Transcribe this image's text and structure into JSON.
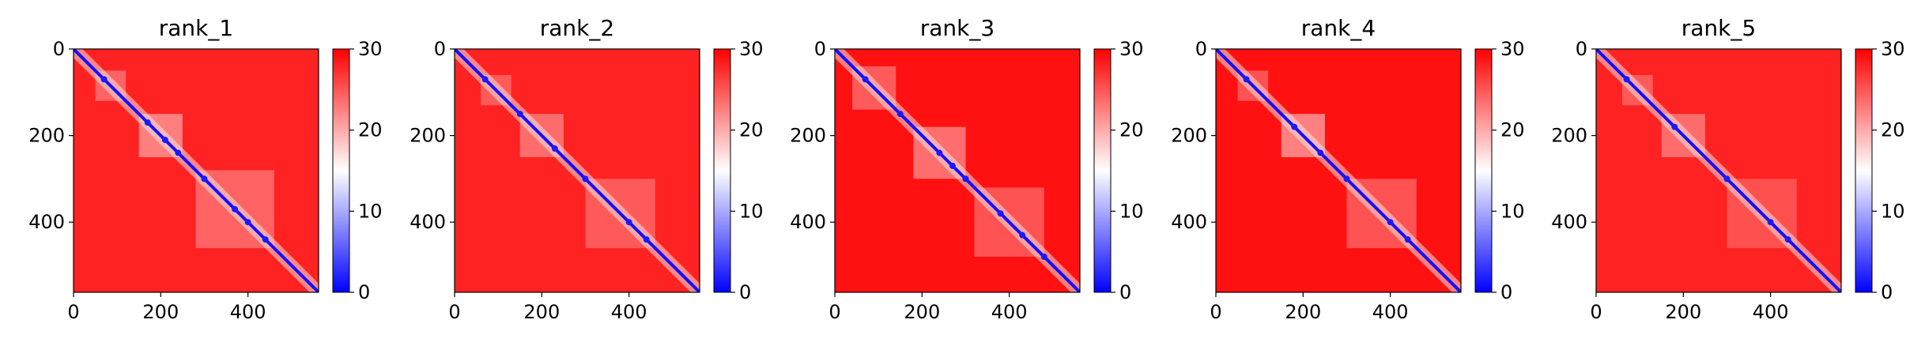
{
  "chart_data": [
    {
      "type": "heatmap",
      "title": "rank_1",
      "xlim": [
        0,
        562
      ],
      "ylim": [
        562,
        0
      ],
      "xticks": [
        0,
        200,
        400
      ],
      "yticks": [
        0,
        200,
        400
      ],
      "colorbar": {
        "min": 0,
        "max": 30,
        "ticks": [
          0,
          10,
          20,
          30
        ],
        "colormap": "bwr"
      },
      "background_value": 28,
      "diagonal_value": 1,
      "blocks": [
        {
          "start": 150,
          "end": 250,
          "value": 18
        },
        {
          "start": 50,
          "end": 120,
          "value": 21
        },
        {
          "start": 280,
          "end": 460,
          "value": 21
        }
      ],
      "nodes": [
        70,
        170,
        210,
        240,
        300,
        370,
        400,
        440
      ]
    },
    {
      "type": "heatmap",
      "title": "rank_2",
      "xlim": [
        0,
        562
      ],
      "ylim": [
        562,
        0
      ],
      "xticks": [
        0,
        200,
        400
      ],
      "yticks": [
        0,
        200,
        400
      ],
      "colorbar": {
        "min": 0,
        "max": 30,
        "ticks": [
          0,
          10,
          20,
          30
        ],
        "colormap": "bwr"
      },
      "background_value": 28,
      "diagonal_value": 1,
      "blocks": [
        {
          "start": 150,
          "end": 250,
          "value": 20
        },
        {
          "start": 60,
          "end": 130,
          "value": 22
        },
        {
          "start": 300,
          "end": 460,
          "value": 22
        }
      ],
      "nodes": [
        70,
        150,
        230,
        300,
        400,
        440
      ]
    },
    {
      "type": "heatmap",
      "title": "rank_3",
      "xlim": [
        0,
        562
      ],
      "ylim": [
        562,
        0
      ],
      "xticks": [
        0,
        200,
        400
      ],
      "yticks": [
        0,
        200,
        400
      ],
      "colorbar": {
        "min": 0,
        "max": 30,
        "ticks": [
          0,
          10,
          20,
          30
        ],
        "colormap": "bwr"
      },
      "background_value": 29,
      "diagonal_value": 1,
      "blocks": [
        {
          "start": 180,
          "end": 300,
          "value": 19
        },
        {
          "start": 40,
          "end": 140,
          "value": 21
        },
        {
          "start": 320,
          "end": 480,
          "value": 22
        }
      ],
      "nodes": [
        70,
        150,
        240,
        270,
        300,
        380,
        430,
        480
      ]
    },
    {
      "type": "heatmap",
      "title": "rank_4",
      "xlim": [
        0,
        562
      ],
      "ylim": [
        562,
        0
      ],
      "xticks": [
        0,
        200,
        400
      ],
      "yticks": [
        0,
        200,
        400
      ],
      "colorbar": {
        "min": 0,
        "max": 30,
        "ticks": [
          0,
          10,
          20,
          30
        ],
        "colormap": "bwr"
      },
      "background_value": 29,
      "diagonal_value": 1,
      "blocks": [
        {
          "start": 150,
          "end": 250,
          "value": 17
        },
        {
          "start": 50,
          "end": 120,
          "value": 22
        },
        {
          "start": 300,
          "end": 460,
          "value": 22
        }
      ],
      "nodes": [
        70,
        180,
        240,
        300,
        400,
        440
      ]
    },
    {
      "type": "heatmap",
      "title": "rank_5",
      "xlim": [
        0,
        562
      ],
      "ylim": [
        562,
        0
      ],
      "xticks": [
        0,
        200,
        400
      ],
      "yticks": [
        0,
        200,
        400
      ],
      "colorbar": {
        "min": 0,
        "max": 30,
        "ticks": [
          0,
          10,
          20,
          30
        ],
        "colormap": "bwr"
      },
      "background_value": 28,
      "diagonal_value": 1,
      "blocks": [
        {
          "start": 150,
          "end": 250,
          "value": 20
        },
        {
          "start": 60,
          "end": 130,
          "value": 22
        },
        {
          "start": 300,
          "end": 460,
          "value": 23
        }
      ],
      "nodes": [
        70,
        180,
        300,
        400,
        440
      ]
    }
  ]
}
